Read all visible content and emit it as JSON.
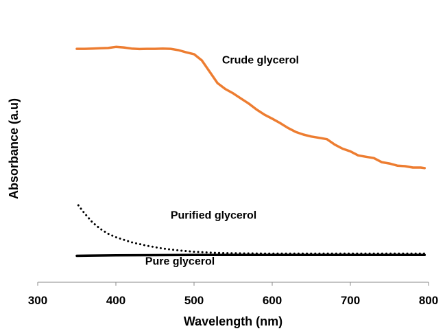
{
  "chart_data": {
    "type": "line",
    "title": "",
    "xlabel": "Wavelength (nm)",
    "ylabel": "Absorbance (a.u)",
    "xlim": [
      300,
      800
    ],
    "ylim": [
      0,
      1
    ],
    "x_ticks": [
      "300",
      "400",
      "500",
      "600",
      "700",
      "800"
    ],
    "y_ticks_shown": false,
    "grid": false,
    "legend": "none (series labelled by annotations)",
    "series": [
      {
        "name": "Crude glycerol",
        "color": "#ED7D31",
        "style": "solid",
        "x": [
          350,
          360,
          370,
          380,
          390,
          400,
          410,
          420,
          430,
          440,
          450,
          460,
          470,
          480,
          490,
          500,
          510,
          520,
          530,
          540,
          550,
          560,
          570,
          580,
          590,
          600,
          610,
          620,
          630,
          640,
          650,
          660,
          670,
          680,
          690,
          700,
          710,
          720,
          730,
          740,
          750,
          760,
          770,
          780,
          790,
          795
        ],
        "y": [
          0.865,
          0.865,
          0.866,
          0.867,
          0.868,
          0.872,
          0.87,
          0.866,
          0.864,
          0.865,
          0.865,
          0.866,
          0.865,
          0.86,
          0.852,
          0.845,
          0.822,
          0.78,
          0.738,
          0.716,
          0.7,
          0.681,
          0.662,
          0.64,
          0.621,
          0.606,
          0.59,
          0.572,
          0.557,
          0.547,
          0.54,
          0.535,
          0.53,
          0.51,
          0.495,
          0.485,
          0.47,
          0.465,
          0.46,
          0.445,
          0.44,
          0.432,
          0.43,
          0.425,
          0.425,
          0.423
        ]
      },
      {
        "name": "Purified glycerol",
        "color": "#000000",
        "style": "dotted",
        "x": [
          352,
          360,
          370,
          380,
          390,
          400,
          420,
          440,
          460,
          480,
          500,
          520,
          540,
          560,
          600,
          650,
          700,
          750,
          795
        ],
        "y": [
          0.285,
          0.255,
          0.222,
          0.198,
          0.18,
          0.167,
          0.148,
          0.135,
          0.125,
          0.118,
          0.113,
          0.11,
          0.108,
          0.107,
          0.106,
          0.106,
          0.106,
          0.106,
          0.106
        ]
      },
      {
        "name": "Pure glycerol",
        "color": "#000000",
        "style": "solid",
        "x": [
          350,
          400,
          500,
          600,
          700,
          795
        ],
        "y": [
          0.098,
          0.1,
          0.101,
          0.101,
          0.101,
          0.101
        ]
      }
    ],
    "annotations": [
      {
        "text": "Crude glycerol",
        "x": 585,
        "y": 0.81
      },
      {
        "text": "Purified glycerol",
        "x": 525,
        "y": 0.235
      },
      {
        "text": "Pure glycerol",
        "x": 482,
        "y": 0.065
      }
    ]
  }
}
